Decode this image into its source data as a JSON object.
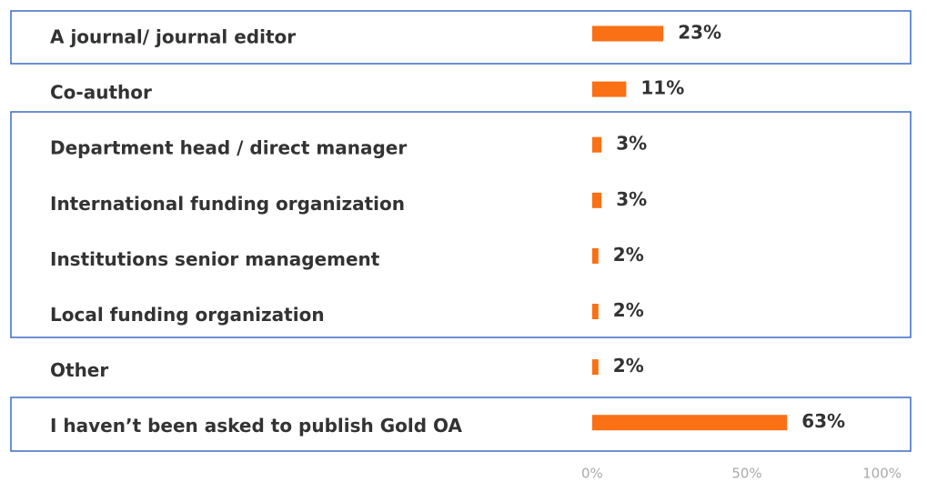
{
  "chart_data": {
    "type": "bar",
    "orientation": "horizontal",
    "categories": [
      "A journal/ journal editor",
      "Co-author",
      "Department head / direct manager",
      "International funding organization",
      "Institutions senior management",
      "Local funding organization",
      "Other",
      "I haven’t been asked to publish Gold OA"
    ],
    "values": [
      23,
      11,
      3,
      3,
      2,
      2,
      2,
      63
    ],
    "value_labels": [
      "23%",
      "11%",
      "3%",
      "3%",
      "2%",
      "2%",
      "2%",
      "63%"
    ],
    "color": "#fa7014",
    "xlim": [
      0,
      100
    ],
    "xticks": [
      {
        "value": 0,
        "label": "0%"
      },
      {
        "value": 50,
        "label": "50%"
      },
      {
        "value": 100,
        "label": "100%"
      }
    ],
    "grid": false
  }
}
